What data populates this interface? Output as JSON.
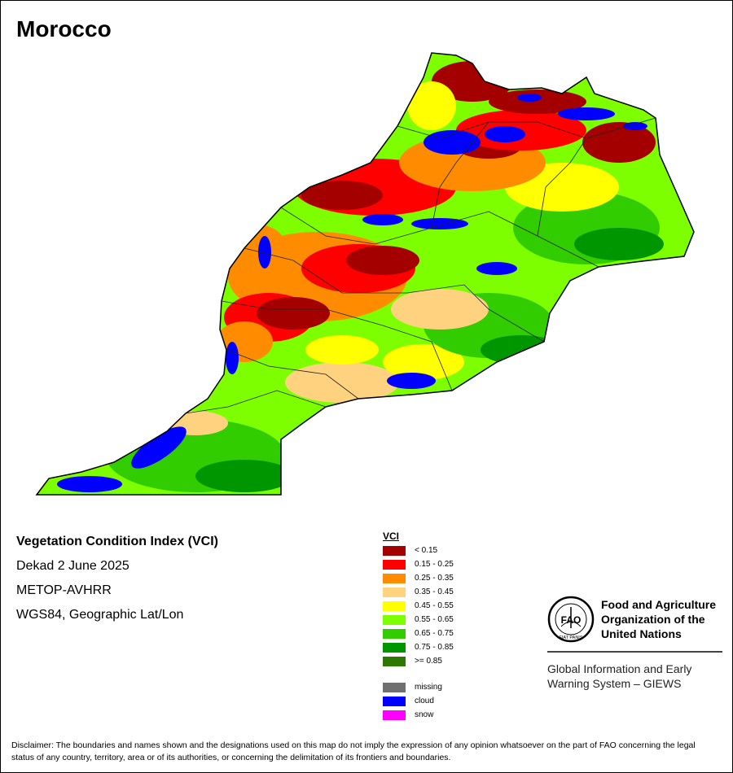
{
  "country": "Morocco",
  "info": {
    "title": "Vegetation Condition Index (VCI)",
    "dekad": "Dekad 2 June 2025",
    "sensor": "METOP-AVHRR",
    "projection": "WGS84, Geographic Lat/Lon"
  },
  "legend": {
    "title": "VCI",
    "classes": [
      {
        "label": "< 0.15",
        "color": "#a50000"
      },
      {
        "label": "0.15 - 0.25",
        "color": "#ff0000"
      },
      {
        "label": "0.25 - 0.35",
        "color": "#ff8c00"
      },
      {
        "label": "0.35 - 0.45",
        "color": "#ffd27f"
      },
      {
        "label": "0.45 - 0.55",
        "color": "#ffff00"
      },
      {
        "label": "0.55 - 0.65",
        "color": "#7dff00"
      },
      {
        "label": "0.65 - 0.75",
        "color": "#32cd00"
      },
      {
        "label": "0.75 - 0.85",
        "color": "#009600"
      },
      {
        "label": ">= 0.85",
        "color": "#2d7800"
      }
    ],
    "other": [
      {
        "label": "missing",
        "color": "#707070"
      },
      {
        "label": "cloud",
        "color": "#0000ff"
      },
      {
        "label": "snow",
        "color": "#ff00ff"
      }
    ]
  },
  "fao": {
    "name_lines": [
      "Food and Agriculture",
      "Organization of the",
      "United Nations"
    ],
    "logo_text": "FAO",
    "motto": "FIAT PANIS",
    "giews_lines": [
      "Global Information and Early",
      "Warning System – GIEWS"
    ]
  },
  "disclaimer": "Disclaimer: The boundaries and names shown and the designations used on this map do not imply the expression of any opinion whatsoever on the part of FAO concerning the legal status of any country, territory, area or of its authorities, or concerning the delimitation of its frontiers and boundaries."
}
